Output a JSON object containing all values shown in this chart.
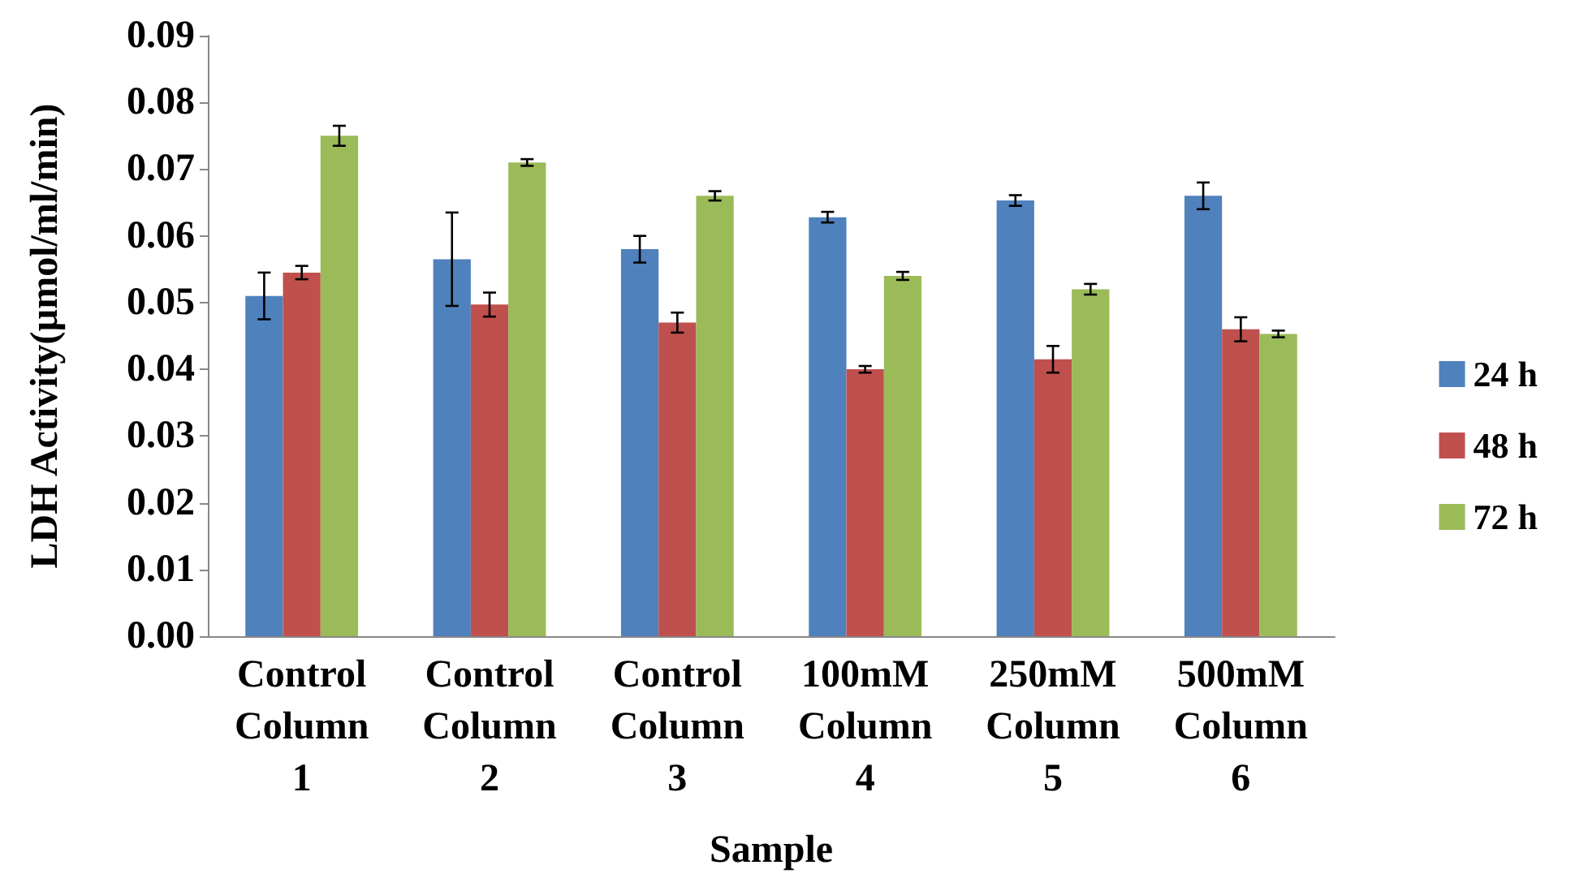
{
  "chart_data": {
    "type": "bar",
    "xlabel": "Sample",
    "ylabel": "LDH Activity(µmol/ml/min)",
    "categories": [
      "Control\nColumn\n1",
      "Control\nColumn\n2",
      "Control\nColumn\n3",
      "100mM\nColumn\n4",
      "250mM\nColumn\n5",
      "500mM\nColumn\n6"
    ],
    "series": [
      {
        "name": "24 h",
        "color": "#4f81bd",
        "values": [
          0.051,
          0.0565,
          0.058,
          0.0628,
          0.0653,
          0.066
        ],
        "errors": [
          0.0035,
          0.007,
          0.002,
          0.0008,
          0.0008,
          0.002
        ]
      },
      {
        "name": "48 h",
        "color": "#c0504d",
        "values": [
          0.0545,
          0.0497,
          0.047,
          0.04,
          0.0415,
          0.046
        ],
        "errors": [
          0.001,
          0.0018,
          0.0015,
          0.0005,
          0.002,
          0.0018
        ]
      },
      {
        "name": "72 h",
        "color": "#9bbb59",
        "values": [
          0.075,
          0.071,
          0.066,
          0.054,
          0.052,
          0.0453
        ],
        "errors": [
          0.0015,
          0.0005,
          0.0007,
          0.0006,
          0.0008,
          0.0005
        ]
      }
    ],
    "ylim": [
      0,
      0.09
    ],
    "yticks": [
      {
        "value": 0,
        "label": "0.00"
      },
      {
        "value": 0.01,
        "label": "0.01"
      },
      {
        "value": 0.02,
        "label": "0.02"
      },
      {
        "value": 0.03,
        "label": "0.03"
      },
      {
        "value": 0.04,
        "label": "0.04"
      },
      {
        "value": 0.05,
        "label": "0.05"
      },
      {
        "value": 0.06,
        "label": "0.06"
      },
      {
        "value": 0.07,
        "label": "0.07"
      },
      {
        "value": 0.08,
        "label": "0.08"
      },
      {
        "value": 0.09,
        "label": "0.09"
      }
    ],
    "grid": false,
    "legend": "right"
  }
}
